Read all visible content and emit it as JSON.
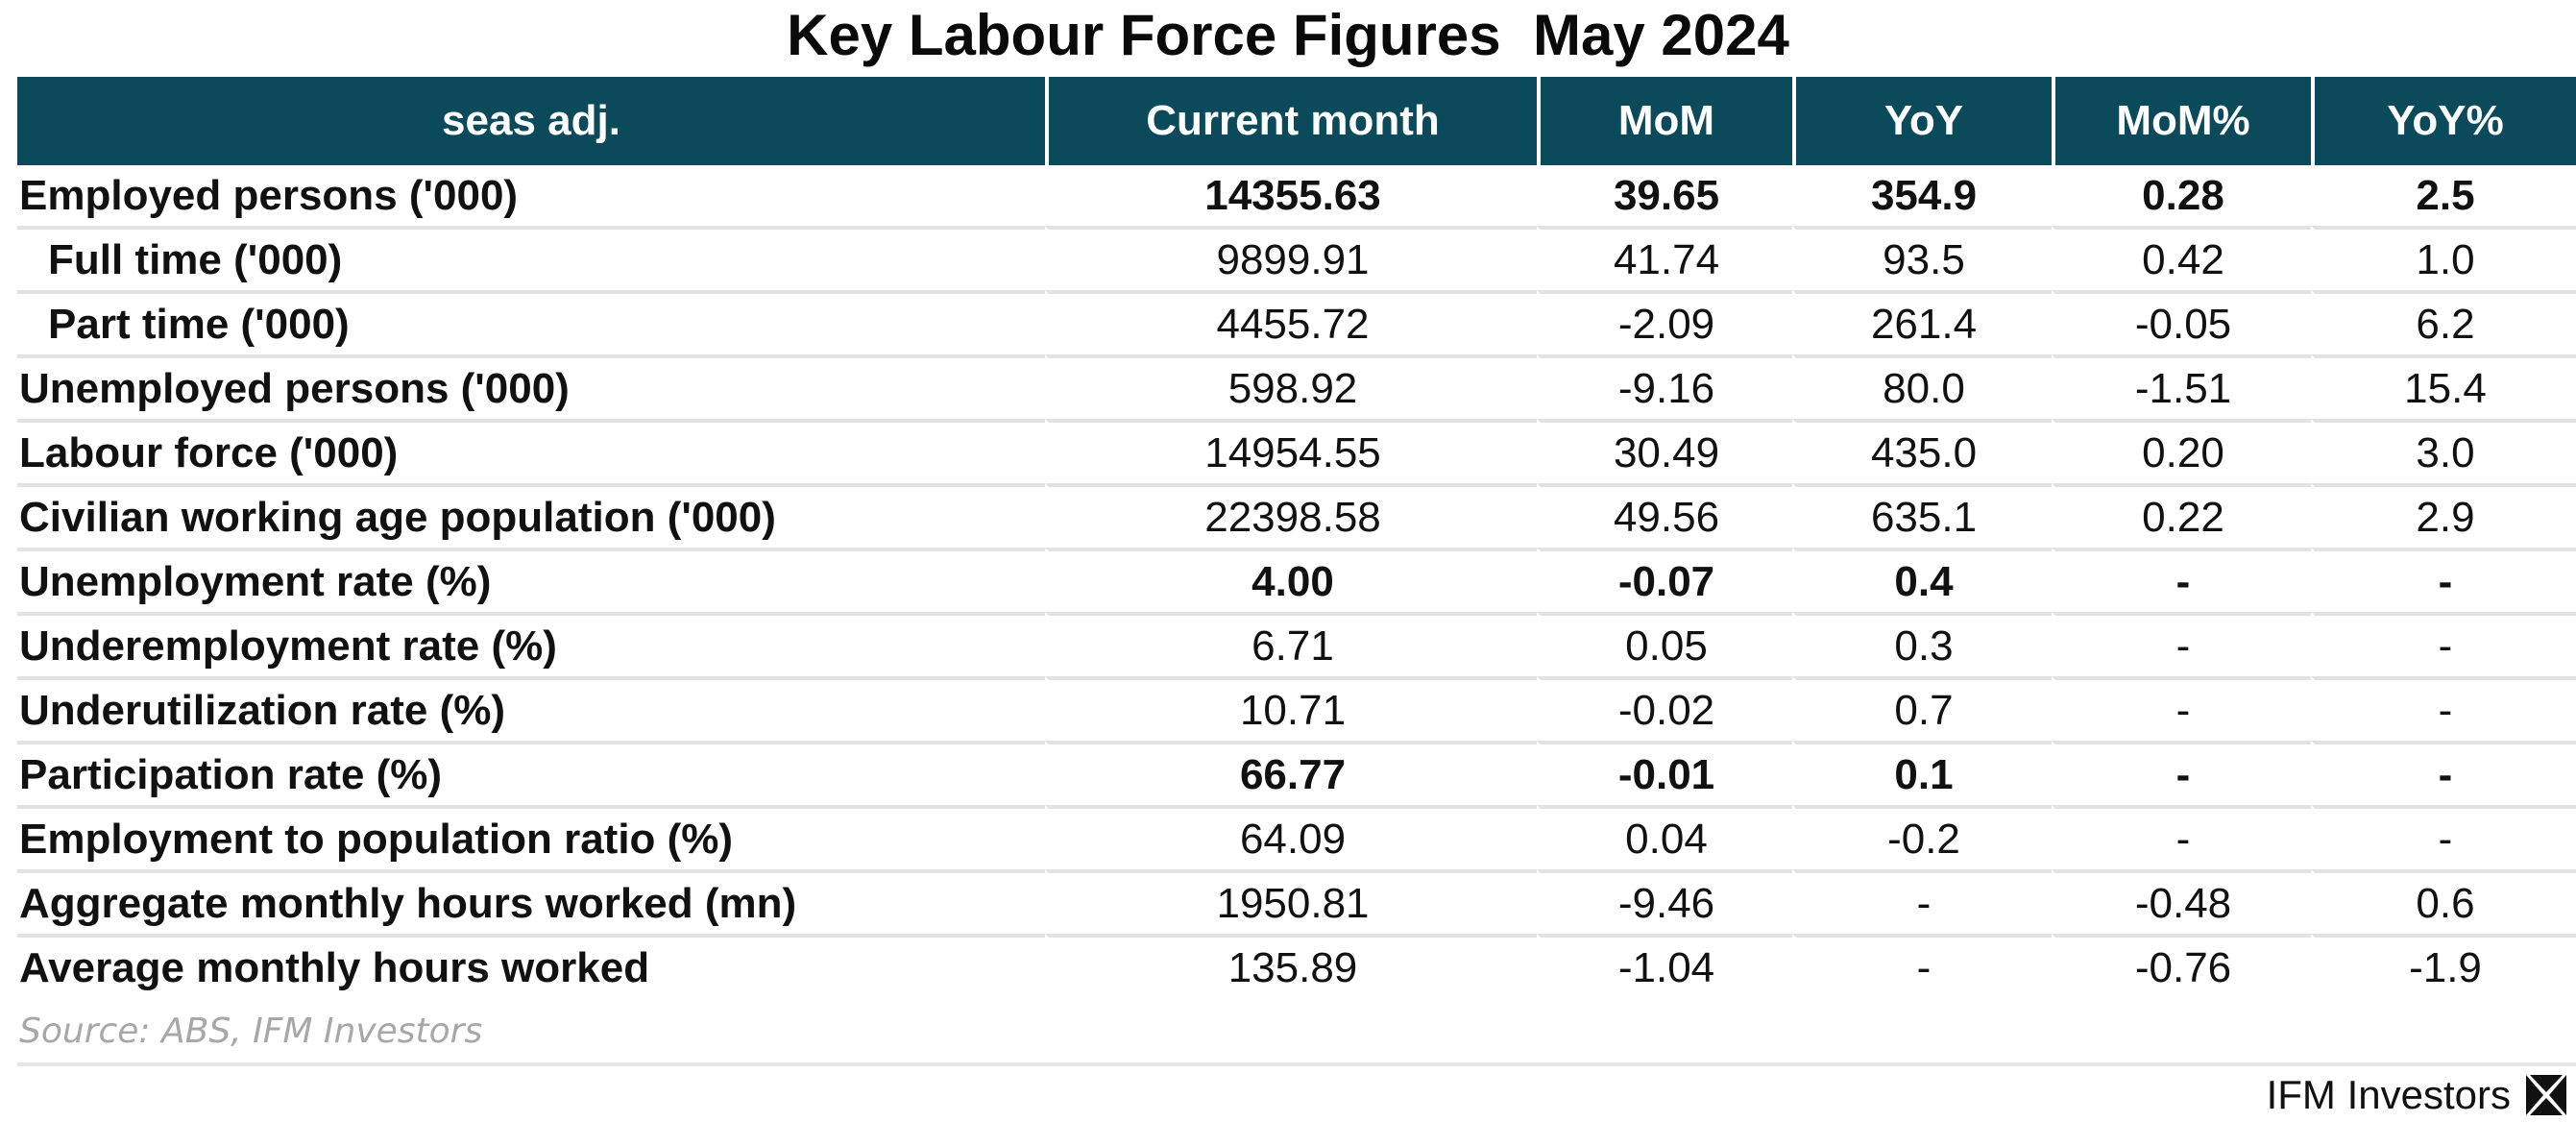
{
  "title": "Key Labour Force Figures  May 2024",
  "chart_data": {
    "type": "table",
    "title": "Key Labour Force Figures  May 2024",
    "columns": [
      "seas adj.",
      "Current month",
      "MoM",
      "YoY",
      "MoM%",
      "YoY%"
    ],
    "rows": [
      {
        "label": "Employed persons ('000)",
        "values": [
          "14355.63",
          "39.65",
          "354.9",
          "0.28",
          "2.5"
        ],
        "bold": true,
        "indent": false
      },
      {
        "label": "Full time ('000)",
        "values": [
          "9899.91",
          "41.74",
          "93.5",
          "0.42",
          "1.0"
        ],
        "bold": false,
        "indent": true
      },
      {
        "label": "Part time ('000)",
        "values": [
          "4455.72",
          "-2.09",
          "261.4",
          "-0.05",
          "6.2"
        ],
        "bold": false,
        "indent": true
      },
      {
        "label": "Unemployed persons ('000)",
        "values": [
          "598.92",
          "-9.16",
          "80.0",
          "-1.51",
          "15.4"
        ],
        "bold": false,
        "indent": false
      },
      {
        "label": "Labour force ('000)",
        "values": [
          "14954.55",
          "30.49",
          "435.0",
          "0.20",
          "3.0"
        ],
        "bold": false,
        "indent": false
      },
      {
        "label": "Civilian working age population ('000)",
        "values": [
          "22398.58",
          "49.56",
          "635.1",
          "0.22",
          "2.9"
        ],
        "bold": false,
        "indent": false
      },
      {
        "label": "Unemployment rate (%)",
        "values": [
          "4.00",
          "-0.07",
          "0.4",
          "-",
          "-"
        ],
        "bold": true,
        "indent": false
      },
      {
        "label": "Underemployment rate (%)",
        "values": [
          "6.71",
          "0.05",
          "0.3",
          "-",
          "-"
        ],
        "bold": false,
        "indent": false
      },
      {
        "label": "Underutilization rate (%)",
        "values": [
          "10.71",
          "-0.02",
          "0.7",
          "-",
          "-"
        ],
        "bold": false,
        "indent": false
      },
      {
        "label": "Participation rate (%)",
        "values": [
          "66.77",
          "-0.01",
          "0.1",
          "-",
          "-"
        ],
        "bold": true,
        "indent": false
      },
      {
        "label": "Employment to population ratio (%)",
        "values": [
          "64.09",
          "0.04",
          "-0.2",
          "-",
          "-"
        ],
        "bold": false,
        "indent": false
      },
      {
        "label": "Aggregate monthly hours worked (mn)",
        "values": [
          "1950.81",
          "-9.46",
          "-",
          "-0.48",
          "0.6"
        ],
        "bold": false,
        "indent": false
      },
      {
        "label": "Average monthly hours worked",
        "values": [
          "135.89",
          "-1.04",
          "-",
          "-0.76",
          "-1.9"
        ],
        "bold": false,
        "indent": false
      }
    ]
  },
  "source": "Source: ABS, IFM Investors",
  "brand": {
    "name": "IFM Investors",
    "logo_icon": "ifm-logo-icon"
  },
  "colors": {
    "header_bg": "#0b4a5a",
    "header_text": "#ffffff",
    "row_rule": "#e2e2e2",
    "source_text": "#a7a7a7"
  }
}
